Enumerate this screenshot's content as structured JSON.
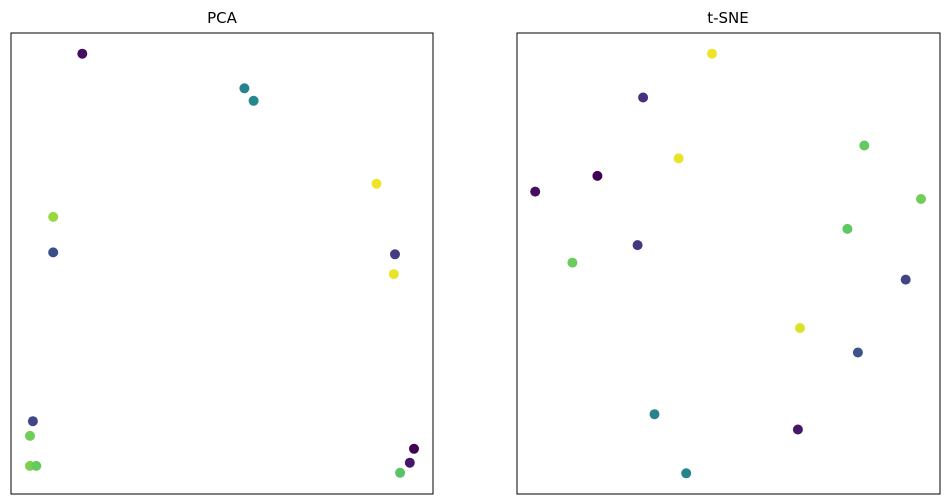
{
  "chart_data": [
    {
      "type": "scatter",
      "title": "PCA",
      "xlabel": "",
      "ylabel": "",
      "ticks": "none",
      "grid": false,
      "colormap": "viridis",
      "xlim": [
        0,
        1
      ],
      "ylim": [
        0,
        1
      ],
      "points": [
        {
          "x": 0.169,
          "y": 0.955,
          "c": 0.05
        },
        {
          "x": 0.553,
          "y": 0.88,
          "c": 0.55
        },
        {
          "x": 0.575,
          "y": 0.853,
          "c": 0.58
        },
        {
          "x": 0.866,
          "y": 0.673,
          "c": 0.98
        },
        {
          "x": 0.1,
          "y": 0.601,
          "c": 0.85
        },
        {
          "x": 0.1,
          "y": 0.524,
          "c": 0.3
        },
        {
          "x": 0.91,
          "y": 0.52,
          "c": 0.22
        },
        {
          "x": 0.907,
          "y": 0.477,
          "c": 0.97
        },
        {
          "x": 0.052,
          "y": 0.158,
          "c": 0.25
        },
        {
          "x": 0.045,
          "y": 0.126,
          "c": 0.78
        },
        {
          "x": 0.955,
          "y": 0.098,
          "c": 0.0
        },
        {
          "x": 0.945,
          "y": 0.068,
          "c": 0.08
        },
        {
          "x": 0.045,
          "y": 0.061,
          "c": 0.8
        },
        {
          "x": 0.06,
          "y": 0.061,
          "c": 0.76
        },
        {
          "x": 0.922,
          "y": 0.046,
          "c": 0.74
        }
      ]
    },
    {
      "type": "scatter",
      "title": "t-SNE",
      "xlabel": "",
      "ylabel": "",
      "ticks": "none",
      "grid": false,
      "colormap": "viridis",
      "xlim": [
        0,
        1
      ],
      "ylim": [
        0,
        1
      ],
      "points": [
        {
          "x": 0.461,
          "y": 0.955,
          "c": 0.98
        },
        {
          "x": 0.298,
          "y": 0.86,
          "c": 0.18
        },
        {
          "x": 0.821,
          "y": 0.756,
          "c": 0.76
        },
        {
          "x": 0.382,
          "y": 0.728,
          "c": 0.97
        },
        {
          "x": 0.19,
          "y": 0.69,
          "c": 0.0
        },
        {
          "x": 0.043,
          "y": 0.656,
          "c": 0.05
        },
        {
          "x": 0.955,
          "y": 0.64,
          "c": 0.78
        },
        {
          "x": 0.781,
          "y": 0.575,
          "c": 0.75
        },
        {
          "x": 0.285,
          "y": 0.54,
          "c": 0.2
        },
        {
          "x": 0.131,
          "y": 0.502,
          "c": 0.77
        },
        {
          "x": 0.919,
          "y": 0.465,
          "c": 0.25
        },
        {
          "x": 0.669,
          "y": 0.36,
          "c": 0.95
        },
        {
          "x": 0.806,
          "y": 0.307,
          "c": 0.32
        },
        {
          "x": 0.325,
          "y": 0.173,
          "c": 0.55
        },
        {
          "x": 0.664,
          "y": 0.14,
          "c": 0.08
        },
        {
          "x": 0.4,
          "y": 0.045,
          "c": 0.57
        }
      ]
    }
  ]
}
